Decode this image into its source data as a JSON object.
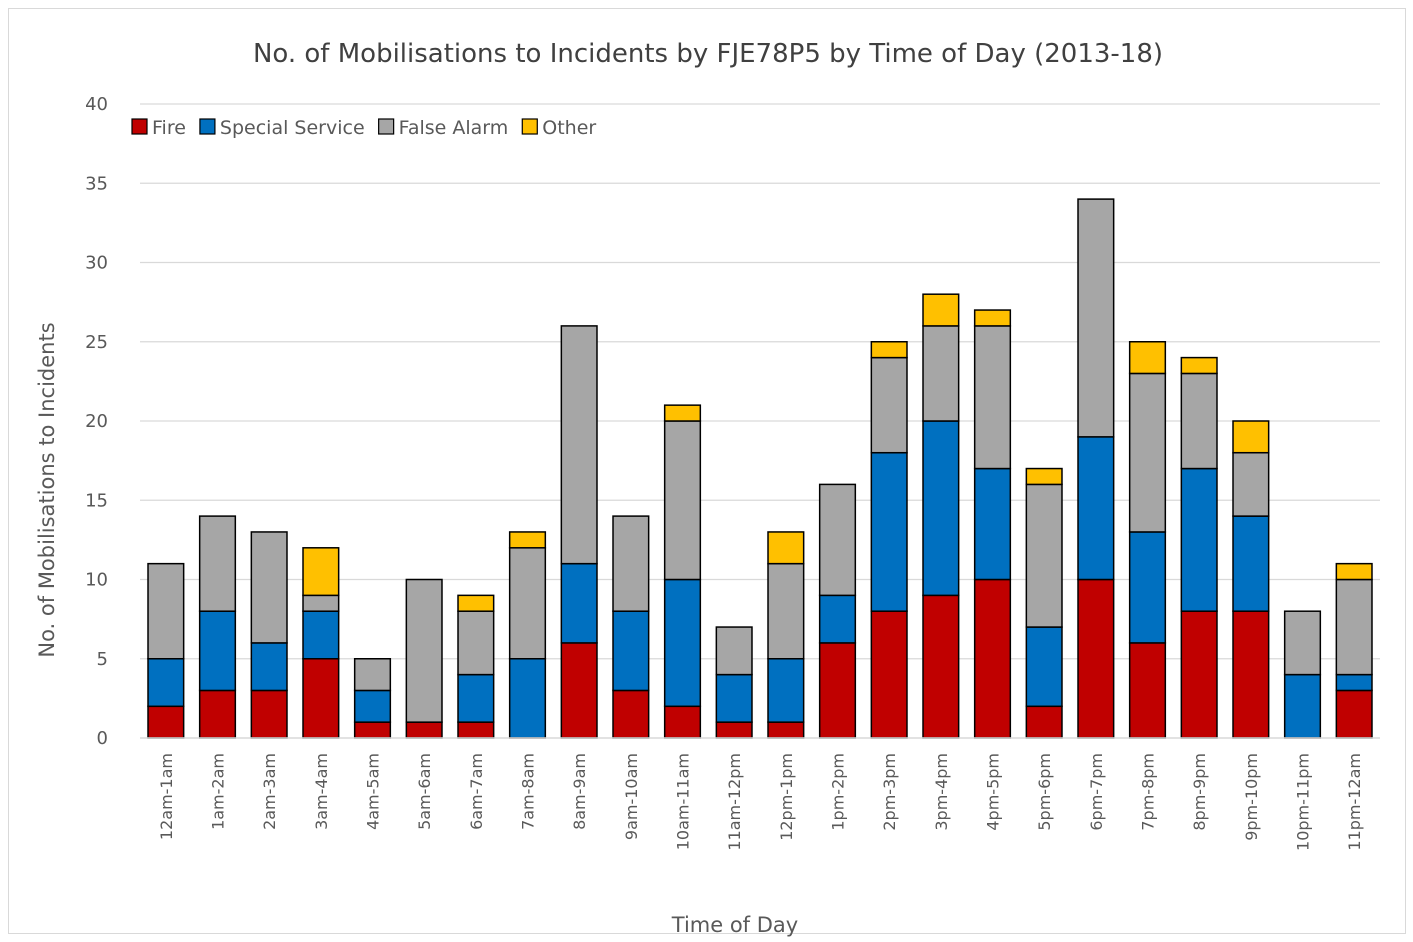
{
  "chart_data": {
    "type": "bar",
    "stacked": true,
    "title": "No. of Mobilisations to Incidents by FJE78P5 by Time of Day (2013-18)",
    "xlabel": "Time of Day",
    "ylabel": "No. of Mobilisations to Incidents",
    "ylim": [
      0,
      40
    ],
    "yticks": [
      0,
      5,
      10,
      15,
      20,
      25,
      30,
      35,
      40
    ],
    "grid": true,
    "legend_position": "top-left",
    "categories": [
      "12am-1am",
      "1am-2am",
      "2am-3am",
      "3am-4am",
      "4am-5am",
      "5am-6am",
      "6am-7am",
      "7am-8am",
      "8am-9am",
      "9am-10am",
      "10am-11am",
      "11am-12pm",
      "12pm-1pm",
      "1pm-2pm",
      "2pm-3pm",
      "3pm-4pm",
      "4pm-5pm",
      "5pm-6pm",
      "6pm-7pm",
      "7pm-8pm",
      "8pm-9pm",
      "9pm-10pm",
      "10pm-11pm",
      "11pm-12am"
    ],
    "series": [
      {
        "name": "Fire",
        "color": "#c00000",
        "values": [
          2,
          3,
          3,
          5,
          1,
          1,
          1,
          0,
          6,
          3,
          2,
          1,
          1,
          6,
          8,
          9,
          10,
          2,
          10,
          6,
          8,
          8,
          0,
          3
        ]
      },
      {
        "name": "Special Service",
        "color": "#0070c0",
        "values": [
          3,
          5,
          3,
          3,
          2,
          0,
          3,
          5,
          5,
          5,
          8,
          3,
          4,
          3,
          10,
          11,
          7,
          5,
          9,
          7,
          9,
          6,
          4,
          1
        ]
      },
      {
        "name": "False Alarm",
        "color": "#a6a6a6",
        "values": [
          6,
          6,
          7,
          1,
          2,
          9,
          4,
          7,
          15,
          6,
          10,
          3,
          6,
          7,
          6,
          6,
          9,
          9,
          15,
          10,
          6,
          4,
          4,
          6
        ]
      },
      {
        "name": "Other",
        "color": "#ffc000",
        "values": [
          0,
          0,
          0,
          3,
          0,
          0,
          1,
          1,
          0,
          0,
          1,
          0,
          2,
          0,
          1,
          2,
          1,
          1,
          0,
          2,
          1,
          2,
          0,
          1
        ]
      }
    ]
  }
}
